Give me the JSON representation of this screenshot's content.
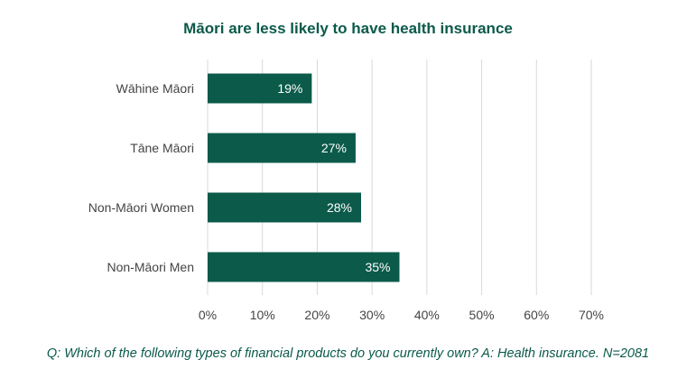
{
  "chart_data": {
    "type": "bar",
    "orientation": "horizontal",
    "title": "Māori are less likely to have health insurance",
    "categories": [
      "Wāhine Māori",
      "Tāne Māori",
      "Non-Māori Women",
      "Non-Māori Men"
    ],
    "values": [
      19,
      27,
      28,
      35
    ],
    "value_labels": [
      "19%",
      "27%",
      "28%",
      "35%"
    ],
    "x_ticks": [
      "0%",
      "10%",
      "20%",
      "30%",
      "40%",
      "50%",
      "60%",
      "70%"
    ],
    "xlim": [
      0,
      70
    ],
    "grid": true,
    "bar_color": "#0b5a4a",
    "caption": "Q: Which of the following types of financial products do you currently own? A: Health insurance. N=2081"
  }
}
